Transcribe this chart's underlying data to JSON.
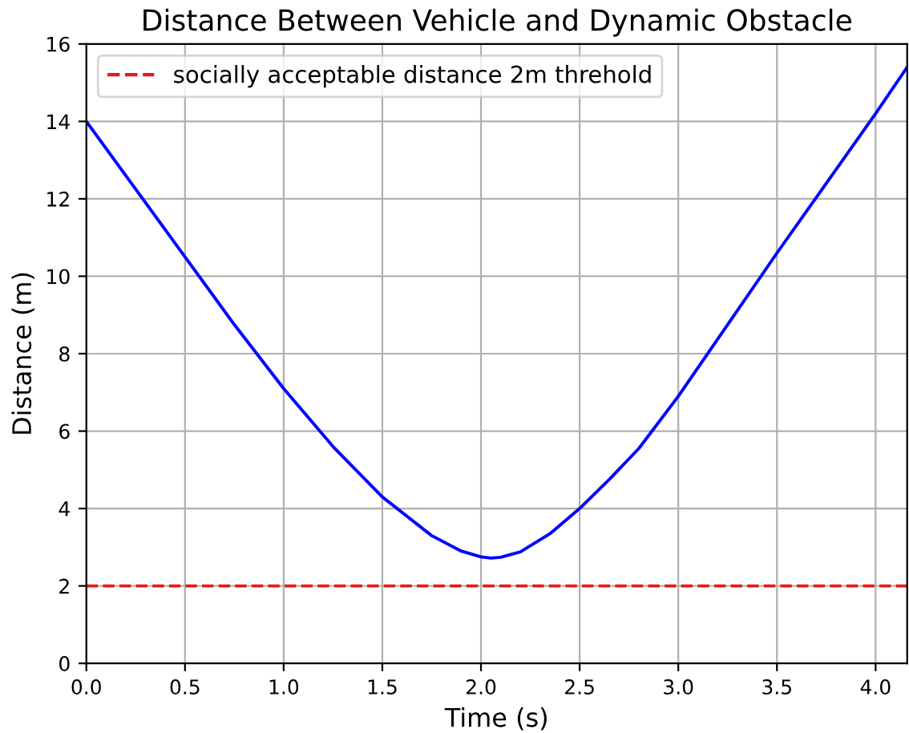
{
  "chart_data": {
    "type": "line",
    "title": "Distance Between Vehicle and Dynamic Obstacle",
    "xlabel": "Time (s)",
    "ylabel": "Distance (m)",
    "series": [
      {
        "color": "#0000ff",
        "x": [
          0,
          0.25,
          0.5,
          0.75,
          1.0,
          1.25,
          1.5,
          1.75,
          1.9,
          2.0,
          2.05,
          2.1,
          2.2,
          2.35,
          2.5,
          2.65,
          2.8,
          3.0,
          3.25,
          3.5,
          3.75,
          4.0,
          4.16
        ],
        "values": [
          14.0,
          12.25,
          10.5,
          8.75,
          7.1,
          5.6,
          4.3,
          3.3,
          2.9,
          2.75,
          2.72,
          2.74,
          2.88,
          3.35,
          4.0,
          4.75,
          5.55,
          6.9,
          8.75,
          10.6,
          12.4,
          14.2,
          15.4
        ]
      }
    ],
    "ref_lines": [
      {
        "axis": "y",
        "value": 2,
        "label": "socially acceptable distance 2m threhold",
        "color": "#e41a1c",
        "line_style": "dashed"
      }
    ],
    "xlim": [
      0,
      4.16
    ],
    "ylim": [
      0,
      16
    ],
    "xticks": [
      {
        "value": 0,
        "label": "0.0"
      },
      {
        "value": 0.5,
        "label": "0.5"
      },
      {
        "value": 1,
        "label": "1.0"
      },
      {
        "value": 1.5,
        "label": "1.5"
      },
      {
        "value": 2,
        "label": "2.0"
      },
      {
        "value": 2.5,
        "label": "2.5"
      },
      {
        "value": 3,
        "label": "3.0"
      },
      {
        "value": 3.5,
        "label": "3.5"
      },
      {
        "value": 4,
        "label": "4.0"
      }
    ],
    "yticks": [
      0,
      2,
      4,
      6,
      8,
      10,
      12,
      14,
      16
    ],
    "grid": true,
    "legend": "top left",
    "line_style": "solid",
    "marker": "none"
  }
}
